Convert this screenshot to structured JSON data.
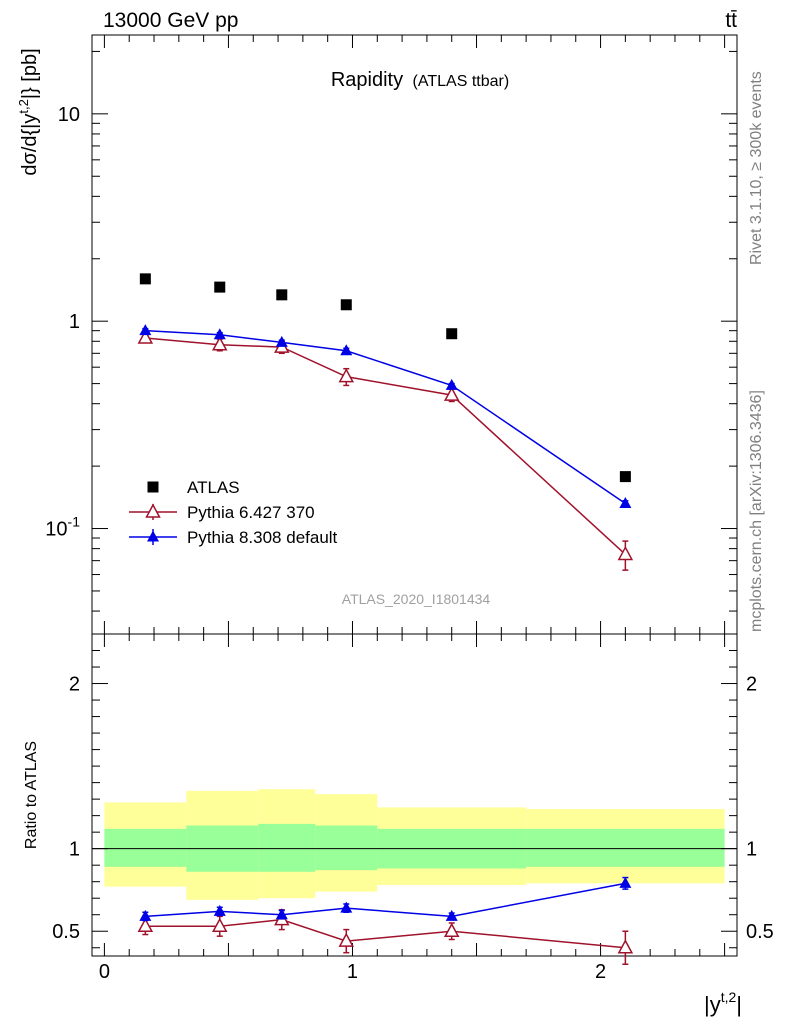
{
  "header": {
    "left": "13000 GeV pp",
    "right": "tt̄"
  },
  "side_labels": {
    "rivet": "Rivet 3.1.10, ≥ 300k events",
    "mcplots": "mcplots.cern.ch [arXiv:1306.3436]"
  },
  "chart_data": {
    "type": "scatter",
    "title": "Rapidity",
    "subtitle": "(ATLAS ttbar)",
    "analysis_id": "ATLAS_2020_I1801434",
    "ylabel": "dσ/d{|y^t,2|} [pb]",
    "xlabel": "|y^t,2|",
    "yscale": "log",
    "xlim": [
      -0.05,
      2.55
    ],
    "ylim": [
      0.031,
      24
    ],
    "legend_position": "bottom-left",
    "x_ticks": [
      "0",
      "1",
      "2"
    ],
    "y_ticks": [
      "10^-1",
      "1",
      "10"
    ],
    "bin_edges": [
      0,
      0.33,
      0.62,
      0.85,
      1.1,
      1.7,
      2.5
    ],
    "x": [
      0.165,
      0.465,
      0.715,
      0.975,
      1.4,
      2.1
    ],
    "series": [
      {
        "name": "ATLAS",
        "marker": "square",
        "color": "#000000",
        "values": [
          1.6,
          1.46,
          1.34,
          1.2,
          0.87,
          0.178
        ]
      },
      {
        "name": "Pythia 6.427 370",
        "marker": "open-triangle",
        "color": "#a0122b",
        "values": [
          0.83,
          0.77,
          0.75,
          0.54,
          0.44,
          0.075
        ],
        "errors": [
          0.04,
          0.05,
          0.05,
          0.05,
          0.03,
          0.012
        ]
      },
      {
        "name": "Pythia 8.308 default",
        "marker": "filled-triangle",
        "color": "#0000e6",
        "values": [
          0.9,
          0.86,
          0.79,
          0.72,
          0.49,
          0.132
        ],
        "errors": [
          0.02,
          0.02,
          0.02,
          0.02,
          0.01,
          0.004
        ]
      }
    ],
    "ratio": {
      "ylabel": "Ratio to ATLAS",
      "ylim": [
        0.35,
        2.3
      ],
      "y_ticks": [
        "0.5",
        "1",
        "2"
      ],
      "band_inner": [
        [
          0.89,
          1.12
        ],
        [
          0.86,
          1.14
        ],
        [
          0.86,
          1.15
        ],
        [
          0.87,
          1.14
        ],
        [
          0.88,
          1.12
        ],
        [
          0.89,
          1.12
        ]
      ],
      "band_outer": [
        [
          0.77,
          1.28
        ],
        [
          0.69,
          1.35
        ],
        [
          0.7,
          1.36
        ],
        [
          0.74,
          1.33
        ],
        [
          0.78,
          1.25
        ],
        [
          0.79,
          1.24
        ]
      ],
      "series": [
        {
          "name": "Pythia 6.427 370",
          "values": [
            0.53,
            0.53,
            0.57,
            0.44,
            0.5,
            0.4
          ],
          "errors": [
            0.05,
            0.06,
            0.06,
            0.07,
            0.05,
            0.1
          ]
        },
        {
          "name": "Pythia 8.308 default",
          "values": [
            0.59,
            0.62,
            0.6,
            0.64,
            0.59,
            0.79
          ],
          "errors": [
            0.025,
            0.025,
            0.025,
            0.025,
            0.02,
            0.035
          ]
        }
      ]
    }
  }
}
